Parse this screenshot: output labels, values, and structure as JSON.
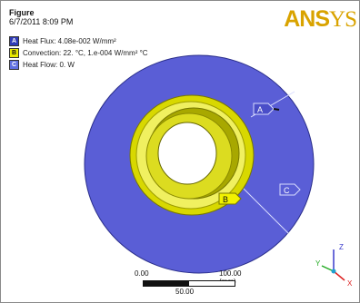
{
  "figure": {
    "title": "Figure",
    "date": "6/7/2011 8:09 PM",
    "logo_main": "ANS",
    "logo_tail": "YS"
  },
  "legend": [
    {
      "letter": "A",
      "text": "Heat Flux: 4.08e-002 W/mm²",
      "color": "#2f3bb8"
    },
    {
      "letter": "B",
      "text": "Convection: 22. °C, 1.e-004 W/mm² °C",
      "color": "#e8e800"
    },
    {
      "letter": "C",
      "text": "Heat Flow: 0. W",
      "color": "#6070e0"
    }
  ],
  "scale": {
    "start": "0.00",
    "end": "100.00 (mm)",
    "mid": "50.00"
  },
  "triad": {
    "x": "X",
    "y": "Y",
    "z": "Z"
  },
  "colors": {
    "disk": "#5a5ed6",
    "disk_edge": "#2a2e8a",
    "ring": "#d8d800",
    "ring_light": "#f0f060",
    "ring_dark": "#9c9c00",
    "logo": "#d9a300"
  }
}
